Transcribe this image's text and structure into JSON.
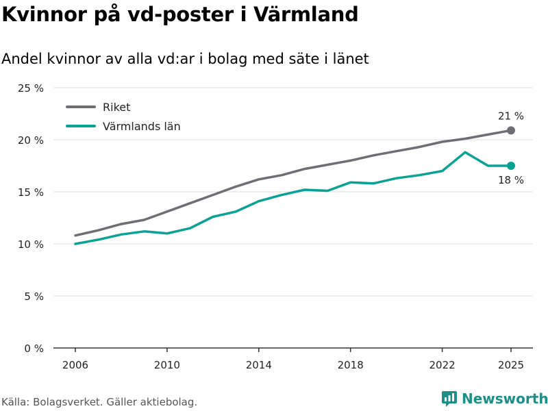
{
  "header": {
    "title": "Kvinnor på vd-poster i Värmland",
    "subtitle": "Andel kvinnor av alla vd:ar i bolag med säte i länet"
  },
  "footer": {
    "source": "Källa: Bolagsverket. Gäller aktiebolag.",
    "brand": "Newsworthy",
    "brand_icon": "newsworthy-logo-icon",
    "brand_color": "#1d8f88"
  },
  "chart_data": {
    "type": "line",
    "title": "Kvinnor på vd-poster i Värmland",
    "subtitle": "Andel kvinnor av alla vd:ar i bolag med säte i länet",
    "xlabel": "",
    "ylabel": "",
    "x": [
      2006,
      2007,
      2008,
      2009,
      2010,
      2011,
      2012,
      2013,
      2014,
      2015,
      2016,
      2017,
      2018,
      2019,
      2020,
      2021,
      2022,
      2023,
      2024,
      2025
    ],
    "xlim": [
      2006,
      2025
    ],
    "ylim": [
      0,
      25
    ],
    "x_ticks": [
      2006,
      2010,
      2014,
      2018,
      2022,
      2025
    ],
    "x_tick_labels": [
      "2006",
      "2010",
      "2014",
      "2018",
      "2022",
      "2025"
    ],
    "y_ticks": [
      0,
      5,
      10,
      15,
      20,
      25
    ],
    "y_tick_labels": [
      "0 %",
      "5 %",
      "10 %",
      "15 %",
      "20 %",
      "25 %"
    ],
    "grid": "horizontal",
    "legend_position": "top-left",
    "series": [
      {
        "name": "Riket",
        "color": "#6e6e74",
        "values": [
          10.8,
          11.3,
          11.9,
          12.3,
          13.1,
          13.9,
          14.7,
          15.5,
          16.2,
          16.6,
          17.2,
          17.6,
          18.0,
          18.5,
          18.9,
          19.3,
          19.8,
          20.1,
          20.5,
          20.9
        ],
        "end_label": "21 %",
        "end_label_position": "above"
      },
      {
        "name": "Värmlands län",
        "color": "#0aa196",
        "values": [
          10.0,
          10.4,
          10.9,
          11.2,
          11.0,
          11.5,
          12.6,
          13.1,
          14.1,
          14.7,
          15.2,
          15.1,
          15.9,
          15.8,
          16.3,
          16.6,
          17.0,
          18.8,
          17.5,
          17.5
        ],
        "end_label": "18 %",
        "end_label_position": "below"
      }
    ]
  }
}
